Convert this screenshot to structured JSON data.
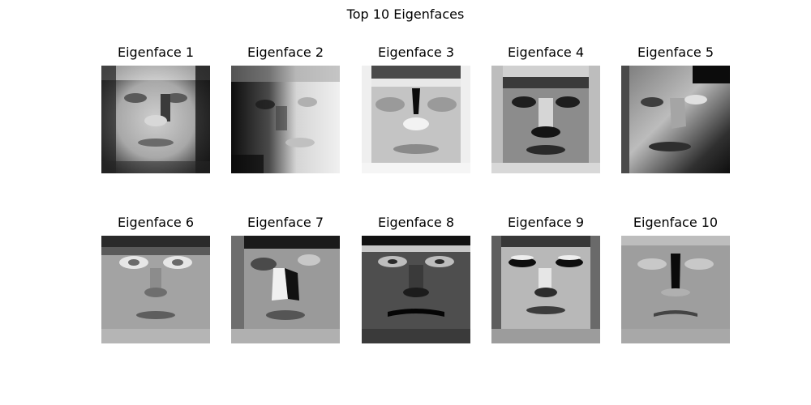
{
  "figure": {
    "title": "Top 10 Eigenfaces",
    "colormap": "gray"
  },
  "panels": [
    {
      "title": "Eigenface 1",
      "style": "lit-face"
    },
    {
      "title": "Eigenface 2",
      "style": "left-dark"
    },
    {
      "title": "Eigenface 3",
      "style": "dark-nose"
    },
    {
      "title": "Eigenface 4",
      "style": "dark-features"
    },
    {
      "title": "Eigenface 5",
      "style": "diagonal-shadow"
    },
    {
      "title": "Eigenface 6",
      "style": "bright-eyes"
    },
    {
      "title": "Eigenface 7",
      "style": "side-nose"
    },
    {
      "title": "Eigenface 8",
      "style": "dark-mouth"
    },
    {
      "title": "Eigenface 9",
      "style": "dark-eyes"
    },
    {
      "title": "Eigenface 10",
      "style": "flat-nose"
    }
  ]
}
